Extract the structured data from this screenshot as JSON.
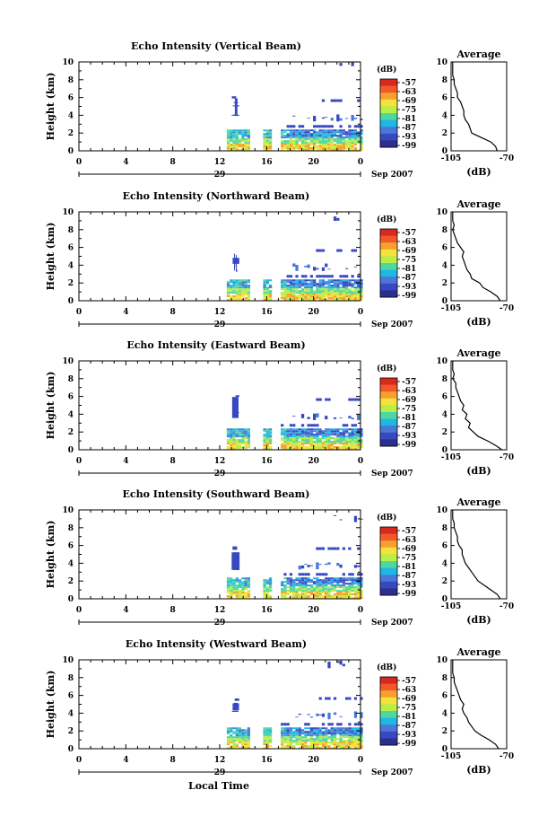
{
  "figure": {
    "common_xlabel": "Local Time",
    "date_suffix": "Sep 2007",
    "day_label": "29"
  },
  "colorbar": {
    "unit": "(dB)",
    "ticks": [
      "-57",
      "-63",
      "-69",
      "-75",
      "-81",
      "-87",
      "-93",
      "-99"
    ],
    "colors": [
      "#d62a1f",
      "#f3572a",
      "#f7a02e",
      "#f5e23c",
      "#b9ed47",
      "#4ed8a1",
      "#1fb7e4",
      "#4a78d8",
      "#3848c0",
      "#2b2f8e"
    ]
  },
  "chart_data": [
    {
      "type": "heatmap",
      "title": "Echo Intensity (Vertical Beam)",
      "ylabel": "Height (km)",
      "xlim": [
        0,
        24
      ],
      "ylim": [
        0,
        10
      ],
      "xticks": [
        "0",
        "4",
        "8",
        "12",
        "16",
        "20",
        "0"
      ],
      "yticks": [
        "0",
        "2",
        "4",
        "6",
        "8",
        "10"
      ],
      "avg": {
        "title": "Average",
        "xlabel": "(dB)",
        "xticks": [
          "-105",
          "-70"
        ],
        "xlim": [
          -105,
          -70
        ],
        "yticks": [
          "0",
          "2",
          "4",
          "6",
          "8",
          "10"
        ],
        "profile": [
          [
            0,
            -76
          ],
          [
            0.5,
            -77
          ],
          [
            1,
            -80
          ],
          [
            1.5,
            -86
          ],
          [
            2,
            -92
          ],
          [
            2.5,
            -93
          ],
          [
            3,
            -94
          ],
          [
            3.5,
            -96
          ],
          [
            4,
            -97
          ],
          [
            4.5,
            -97
          ],
          [
            5,
            -98
          ],
          [
            5.5,
            -99
          ],
          [
            6,
            -101
          ],
          [
            6.5,
            -101
          ],
          [
            7,
            -102
          ],
          [
            7.5,
            -103
          ],
          [
            8,
            -103
          ],
          [
            8.5,
            -104
          ],
          [
            9,
            -104
          ],
          [
            9.5,
            -104
          ],
          [
            10,
            -104
          ]
        ]
      }
    },
    {
      "type": "heatmap",
      "title": "Echo Intensity (Northward Beam)",
      "ylabel": "Height (km)",
      "xlim": [
        0,
        24
      ],
      "ylim": [
        0,
        10
      ],
      "xticks": [
        "0",
        "4",
        "8",
        "12",
        "16",
        "20",
        "0"
      ],
      "yticks": [
        "0",
        "2",
        "4",
        "6",
        "8",
        "10"
      ],
      "avg": {
        "title": "Average",
        "xlabel": "(dB)",
        "xticks": [
          "-105",
          "-70"
        ],
        "xlim": [
          -105,
          -70
        ],
        "yticks": [
          "0",
          "2",
          "4",
          "6",
          "8",
          "10"
        ],
        "profile": [
          [
            0,
            -74
          ],
          [
            0.5,
            -76
          ],
          [
            1,
            -80
          ],
          [
            1.5,
            -85
          ],
          [
            2,
            -87
          ],
          [
            2.5,
            -92
          ],
          [
            3,
            -93
          ],
          [
            3.5,
            -95
          ],
          [
            4,
            -96
          ],
          [
            4.5,
            -97
          ],
          [
            5,
            -98
          ],
          [
            5.5,
            -97
          ],
          [
            6,
            -99
          ],
          [
            6.5,
            -101
          ],
          [
            7,
            -102
          ],
          [
            7.5,
            -103
          ],
          [
            8,
            -104
          ],
          [
            8.5,
            -103
          ],
          [
            9,
            -104
          ],
          [
            9.5,
            -104
          ],
          [
            10,
            -104
          ]
        ]
      }
    },
    {
      "type": "heatmap",
      "title": "Echo Intensity (Eastward Beam)",
      "ylabel": "Height (km)",
      "xlim": [
        0,
        24
      ],
      "ylim": [
        0,
        10
      ],
      "xticks": [
        "0",
        "4",
        "8",
        "12",
        "16",
        "20",
        "0"
      ],
      "yticks": [
        "0",
        "2",
        "4",
        "6",
        "8",
        "10"
      ],
      "avg": {
        "title": "Average",
        "xlabel": "(dB)",
        "xticks": [
          "-105",
          "-70"
        ],
        "xlim": [
          -105,
          -70
        ],
        "yticks": [
          "0",
          "2",
          "4",
          "6",
          "8",
          "10"
        ],
        "profile": [
          [
            0,
            -73
          ],
          [
            0.5,
            -77
          ],
          [
            1,
            -82
          ],
          [
            1.5,
            -88
          ],
          [
            2,
            -91
          ],
          [
            2.5,
            -94
          ],
          [
            3,
            -93
          ],
          [
            3.5,
            -96
          ],
          [
            4,
            -95
          ],
          [
            4.5,
            -98
          ],
          [
            5,
            -97
          ],
          [
            5.5,
            -99
          ],
          [
            6,
            -100
          ],
          [
            6.5,
            -101
          ],
          [
            7,
            -102
          ],
          [
            7.5,
            -102
          ],
          [
            8,
            -104
          ],
          [
            8.5,
            -103
          ],
          [
            9,
            -104
          ],
          [
            9.5,
            -104
          ],
          [
            10,
            -104
          ]
        ]
      }
    },
    {
      "type": "heatmap",
      "title": "Echo Intensity (Southward Beam)",
      "ylabel": "Height (km)",
      "xlim": [
        0,
        24
      ],
      "ylim": [
        0,
        10
      ],
      "xticks": [
        "0",
        "4",
        "8",
        "12",
        "16",
        "20",
        "0"
      ],
      "yticks": [
        "0",
        "2",
        "4",
        "6",
        "8",
        "10"
      ],
      "avg": {
        "title": "Average",
        "xlabel": "(dB)",
        "xticks": [
          "-105",
          "-70"
        ],
        "xlim": [
          -105,
          -70
        ],
        "yticks": [
          "0",
          "2",
          "4",
          "6",
          "8",
          "10"
        ],
        "profile": [
          [
            0,
            -74
          ],
          [
            0.5,
            -76
          ],
          [
            1,
            -80
          ],
          [
            1.5,
            -84
          ],
          [
            2,
            -88
          ],
          [
            2.5,
            -90
          ],
          [
            3,
            -92
          ],
          [
            3.5,
            -94
          ],
          [
            4,
            -96
          ],
          [
            4.5,
            -97
          ],
          [
            5,
            -98
          ],
          [
            5.5,
            -98
          ],
          [
            6,
            -100
          ],
          [
            6.5,
            -101
          ],
          [
            7,
            -101
          ],
          [
            7.5,
            -102
          ],
          [
            8,
            -103
          ],
          [
            8.5,
            -103
          ],
          [
            9,
            -104
          ],
          [
            9.5,
            -104
          ],
          [
            10,
            -104
          ]
        ]
      }
    },
    {
      "type": "heatmap",
      "title": "Echo Intensity (Westward Beam)",
      "ylabel": "Height (km)",
      "xlim": [
        0,
        24
      ],
      "ylim": [
        0,
        10
      ],
      "xticks": [
        "0",
        "4",
        "8",
        "12",
        "16",
        "20",
        "0"
      ],
      "yticks": [
        "0",
        "2",
        "4",
        "6",
        "8",
        "10"
      ],
      "avg": {
        "title": "Average",
        "xlabel": "(dB)",
        "xticks": [
          "-105",
          "-70"
        ],
        "xlim": [
          -105,
          -70
        ],
        "yticks": [
          "0",
          "2",
          "4",
          "6",
          "8",
          "10"
        ],
        "profile": [
          [
            0,
            -75
          ],
          [
            0.5,
            -77
          ],
          [
            1,
            -81
          ],
          [
            1.5,
            -86
          ],
          [
            2,
            -90
          ],
          [
            2.5,
            -92
          ],
          [
            3,
            -94
          ],
          [
            3.5,
            -95
          ],
          [
            4,
            -97
          ],
          [
            4.5,
            -98
          ],
          [
            5,
            -97
          ],
          [
            5.5,
            -99
          ],
          [
            6,
            -100
          ],
          [
            6.5,
            -101
          ],
          [
            7,
            -102
          ],
          [
            7.5,
            -103
          ],
          [
            8,
            -103
          ],
          [
            8.5,
            -104
          ],
          [
            9,
            -104
          ],
          [
            9.5,
            -104
          ],
          [
            10,
            -104
          ]
        ]
      }
    }
  ]
}
